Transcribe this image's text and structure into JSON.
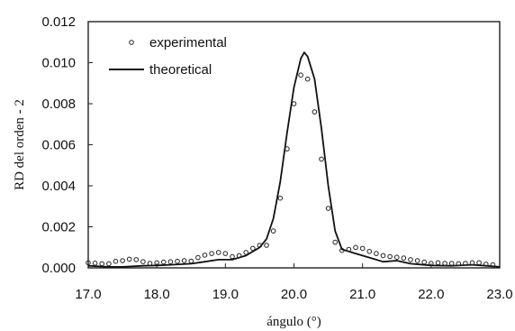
{
  "chart_data": {
    "type": "line",
    "xlabel": "ángulo (°)",
    "ylabel": "RD del orden - 2",
    "xlim": [
      17.0,
      23.0
    ],
    "ylim": [
      0.0,
      0.012
    ],
    "x_ticks": [
      "17.0",
      "18.0",
      "19.0",
      "20.0",
      "21.0",
      "22.0",
      "23.0"
    ],
    "y_ticks": [
      "0.000",
      "0.002",
      "0.004",
      "0.006",
      "0.008",
      "0.010",
      "0.012"
    ],
    "grid": false,
    "legend_position": "top-left",
    "series": [
      {
        "name": "experimental",
        "style": "markers-open-circle",
        "color": "#222222",
        "x": [
          17.0,
          17.1,
          17.2,
          17.3,
          17.4,
          17.5,
          17.6,
          17.7,
          17.8,
          17.9,
          18.0,
          18.1,
          18.2,
          18.3,
          18.4,
          18.5,
          18.6,
          18.7,
          18.8,
          18.9,
          19.0,
          19.1,
          19.2,
          19.3,
          19.4,
          19.5,
          19.6,
          19.7,
          19.8,
          19.9,
          20.0,
          20.1,
          20.2,
          20.3,
          20.4,
          20.5,
          20.6,
          20.7,
          20.8,
          20.9,
          21.0,
          21.1,
          21.2,
          21.3,
          21.4,
          21.5,
          21.6,
          21.7,
          21.8,
          21.9,
          22.0,
          22.1,
          22.2,
          22.3,
          22.4,
          22.5,
          22.6,
          22.7,
          22.8,
          22.9
        ],
        "values": [
          0.00025,
          0.00023,
          0.0002,
          0.0002,
          0.00032,
          0.00035,
          0.00042,
          0.0004,
          0.0003,
          0.00022,
          0.00025,
          0.00028,
          0.0003,
          0.00032,
          0.00035,
          0.00033,
          0.0005,
          0.00062,
          0.0007,
          0.00075,
          0.0007,
          0.00055,
          0.0006,
          0.00075,
          0.00095,
          0.0011,
          0.0011,
          0.0018,
          0.0034,
          0.0058,
          0.008,
          0.0094,
          0.0092,
          0.0076,
          0.0053,
          0.0029,
          0.00125,
          0.00085,
          0.0009,
          0.001,
          0.00095,
          0.0008,
          0.0007,
          0.0006,
          0.00055,
          0.00052,
          0.00048,
          0.0004,
          0.00035,
          0.00028,
          0.00022,
          0.00025,
          0.00022,
          0.00022,
          0.0002,
          0.00022,
          0.00025,
          0.00025,
          0.00018,
          0.00015
        ]
      },
      {
        "name": "theoretical",
        "style": "line",
        "color": "#111111",
        "x": [
          17.0,
          17.3,
          17.5,
          17.8,
          18.0,
          18.2,
          18.5,
          18.7,
          18.9,
          19.1,
          19.3,
          19.5,
          19.6,
          19.7,
          19.8,
          19.9,
          20.0,
          20.1,
          20.15,
          20.2,
          20.3,
          20.4,
          20.5,
          20.6,
          20.7,
          20.9,
          21.1,
          21.3,
          21.5,
          21.7,
          22.0,
          22.3,
          22.6,
          22.8,
          23.0
        ],
        "values": [
          0.0001,
          5e-05,
          5e-05,
          0.0001,
          0.00012,
          0.00015,
          0.0002,
          0.0003,
          0.0004,
          0.0004,
          0.0006,
          0.001,
          0.0014,
          0.0024,
          0.0042,
          0.0066,
          0.0088,
          0.0102,
          0.0105,
          0.0103,
          0.0092,
          0.0068,
          0.004,
          0.0018,
          0.0009,
          0.0007,
          0.0005,
          0.0003,
          0.00035,
          0.0002,
          0.00012,
          0.0001,
          0.00015,
          0.0001,
          5e-05
        ]
      }
    ]
  }
}
